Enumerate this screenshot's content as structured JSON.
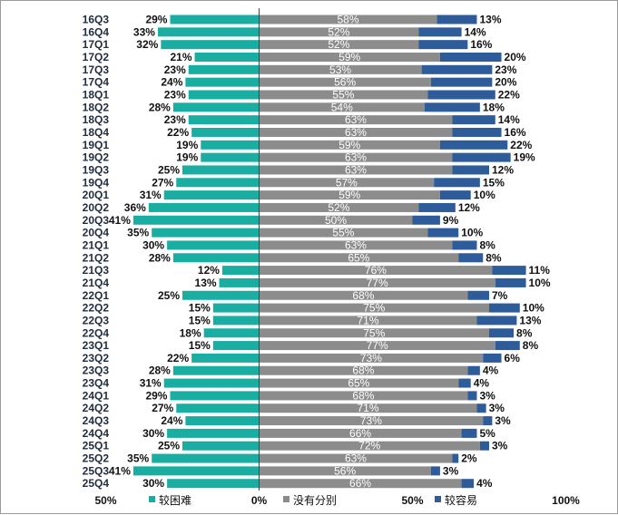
{
  "chart_data": {
    "type": "bar",
    "orientation": "horizontal",
    "stacking": "diverging",
    "categories": [
      "16Q3",
      "16Q4",
      "17Q1",
      "17Q2",
      "17Q3",
      "17Q4",
      "18Q1",
      "18Q2",
      "18Q3",
      "18Q4",
      "19Q1",
      "19Q2",
      "19Q3",
      "19Q4",
      "20Q1",
      "20Q2",
      "20Q3",
      "20Q4",
      "21Q1",
      "21Q2",
      "21Q3",
      "21Q4",
      "22Q1",
      "22Q2",
      "22Q3",
      "22Q4",
      "23Q1",
      "23Q2",
      "23Q3",
      "23Q4",
      "24Q1",
      "24Q2",
      "24Q3",
      "24Q4",
      "25Q1",
      "25Q2",
      "25Q3",
      "25Q4"
    ],
    "series": [
      {
        "name": "较困难",
        "color": "#1aaea3",
        "direction": "left",
        "values": [
          29,
          33,
          32,
          21,
          23,
          24,
          23,
          28,
          23,
          22,
          19,
          19,
          25,
          27,
          31,
          36,
          41,
          35,
          30,
          28,
          12,
          13,
          25,
          15,
          15,
          18,
          15,
          22,
          28,
          31,
          29,
          27,
          24,
          30,
          25,
          35,
          41,
          30
        ]
      },
      {
        "name": "没有分别",
        "color": "#8c8c8c",
        "direction": "right",
        "values": [
          58,
          52,
          52,
          59,
          53,
          56,
          55,
          54,
          63,
          63,
          59,
          63,
          63,
          57,
          59,
          52,
          50,
          55,
          63,
          65,
          76,
          77,
          68,
          75,
          71,
          75,
          77,
          73,
          68,
          65,
          68,
          71,
          73,
          66,
          72,
          63,
          56,
          66
        ]
      },
      {
        "name": "较容易",
        "color": "#2e5b9a",
        "direction": "right",
        "values": [
          13,
          14,
          16,
          20,
          23,
          20,
          22,
          18,
          14,
          16,
          22,
          19,
          12,
          15,
          10,
          12,
          9,
          10,
          8,
          8,
          11,
          10,
          7,
          10,
          13,
          8,
          8,
          6,
          4,
          4,
          3,
          3,
          3,
          5,
          3,
          2,
          3,
          4
        ]
      }
    ],
    "axis": {
      "range": [
        -50,
        100
      ],
      "tick_labels": [
        "50%",
        "0%",
        "50%",
        "100%"
      ],
      "tick_values": [
        -50,
        0,
        50,
        100
      ]
    },
    "value_suffix": "%",
    "legend_position": "bottom"
  }
}
